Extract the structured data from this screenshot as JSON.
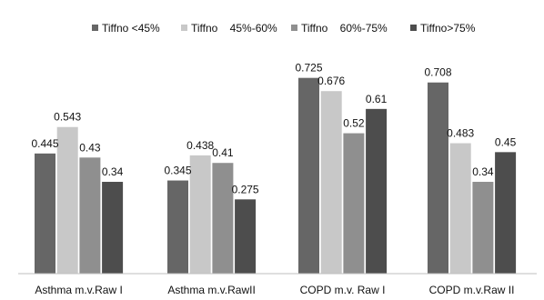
{
  "chart_data": {
    "type": "bar",
    "title": "",
    "xlabel": "",
    "ylabel": "",
    "ylim": [
      0,
      0.8
    ],
    "grid": false,
    "legend_position": "top",
    "categories": [
      "Asthma m.v.Raw I",
      "Asthma m.v.RawII",
      "COPD m.v. Raw I",
      "COPD m.v.Raw II"
    ],
    "series": [
      {
        "name": "Tiffno <45%",
        "color": "#666666",
        "values": [
          0.445,
          0.345,
          0.725,
          0.708
        ],
        "labels": [
          "0.445",
          "0.345",
          "0.725",
          "0.708"
        ]
      },
      {
        "name": "Tiffno    45%-60%",
        "color": "#c8c8c8",
        "values": [
          0.543,
          0.438,
          0.676,
          0.483
        ],
        "labels": [
          "0.543",
          "0.438",
          "0.676",
          "0.483"
        ]
      },
      {
        "name": "Tiffno    60%-75%",
        "color": "#8f8f8f",
        "values": [
          0.43,
          0.41,
          0.52,
          0.34
        ],
        "labels": [
          "0.43",
          "0.41",
          "0.52",
          "0.34"
        ]
      },
      {
        "name": "Tiffno>75%",
        "color": "#4d4d4d",
        "values": [
          0.34,
          0.275,
          0.61,
          0.45
        ],
        "labels": [
          "0.34",
          "0.275",
          "0.61",
          "0.45"
        ]
      }
    ]
  }
}
